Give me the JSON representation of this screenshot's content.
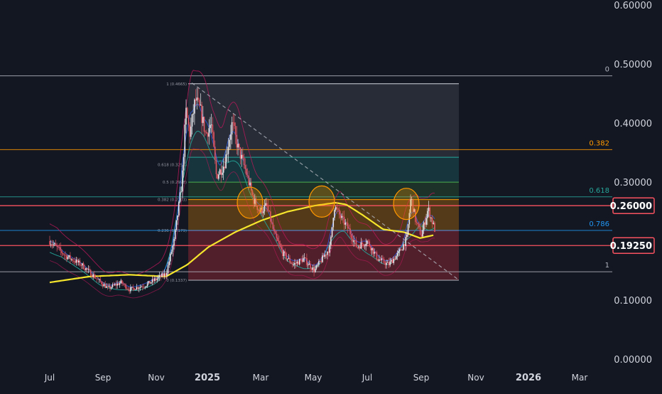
{
  "chart_data": {
    "type": "candlestick",
    "title": "",
    "xlabel": "",
    "ylabel": "",
    "ylim": [
      0.0,
      0.6
    ],
    "x_ticks": [
      "Jul",
      "Sep",
      "Nov",
      "2025",
      "Mar",
      "May",
      "Jul",
      "Sep",
      "Nov",
      "2026",
      "Mar"
    ],
    "bold_x_ticks": [
      "2025",
      "2026"
    ],
    "y_ticks": [
      "0.60000",
      "0.50000",
      "0.40000",
      "0.30000",
      "0.20000",
      "0.10000",
      "0.00000"
    ],
    "price_labels": [
      {
        "text": "0.26000",
        "value": 0.26,
        "color": "#f7525f"
      },
      {
        "text": "0.19250",
        "value": 0.1925,
        "color": "#f7525f"
      }
    ],
    "fib_lines": [
      {
        "label": "0",
        "value": 0.48,
        "color": "#b2b5be"
      },
      {
        "label": "0.382",
        "value": 0.355,
        "color": "#ff9800"
      },
      {
        "label": "0.618",
        "value": 0.275,
        "color": "#26a69a"
      },
      {
        "label": "0.786",
        "value": 0.218,
        "color": "#2196f3"
      },
      {
        "label": "1",
        "value": 0.148,
        "color": "#b2b5be"
      }
    ],
    "fib_zone_labels": [
      "1 (0.4665)",
      "0.618 (0.3293)",
      "0.5 (0.2998)",
      "0.382 (0.2703)",
      "0.236 (0.2179)",
      "0 (0.1337)"
    ],
    "colors": {
      "background": "#131722",
      "up": "#e8e8ee",
      "down": "#e05561",
      "ma200": "#f5e52c",
      "band_inner": "#26a69a",
      "band_outer": "#c2185b",
      "band_blue": "#2962ff"
    }
  }
}
